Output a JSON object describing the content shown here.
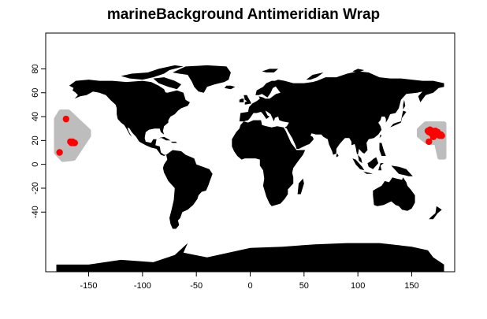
{
  "title": "marineBackground Antimeridian Wrap",
  "colors": {
    "land": "#000000",
    "background": "#bdbdbd",
    "points": "#ff0000",
    "axis": "#000000"
  },
  "chart_data": {
    "type": "scatter",
    "title": "marineBackground Antimeridian Wrap",
    "xlabel": "",
    "ylabel": "",
    "xlim": [
      -180,
      180
    ],
    "ylim": [
      -90,
      90
    ],
    "x_ticks": [
      -150,
      -100,
      -50,
      0,
      50,
      100,
      150
    ],
    "y_ticks": [
      -40,
      -20,
      0,
      20,
      40,
      60,
      80
    ],
    "grid": false,
    "series": [
      {
        "points": [
          [
            -177,
            10
          ],
          [
            -171,
            38
          ],
          [
            -167,
            19
          ],
          [
            -166,
            18
          ],
          [
            -165,
            19
          ],
          [
            -164,
            18
          ],
          [
            -163,
            18
          ],
          [
            165,
            28
          ],
          [
            166,
            27
          ],
          [
            167,
            29
          ],
          [
            168,
            26
          ],
          [
            169,
            28
          ],
          [
            170,
            27
          ],
          [
            171,
            26
          ],
          [
            172,
            28
          ],
          [
            173,
            25
          ],
          [
            174,
            27
          ],
          [
            175,
            25
          ],
          [
            176,
            24
          ],
          [
            177,
            25
          ],
          [
            178,
            24
          ],
          [
            166,
            19
          ],
          [
            170,
            23
          ]
        ]
      }
    ],
    "background_regions": [
      {
        "polygon": [
          [
            -176,
            44
          ],
          [
            -169,
            44
          ],
          [
            -150,
            28
          ],
          [
            -150,
            24
          ],
          [
            -164,
            5
          ],
          [
            -174,
            4
          ],
          [
            -180,
            10
          ],
          [
            -180,
            38
          ]
        ]
      },
      {
        "polygon": [
          [
            180,
            34
          ],
          [
            163,
            34
          ],
          [
            157,
            29
          ],
          [
            157,
            24
          ],
          [
            164,
            19
          ],
          [
            173,
            18
          ],
          [
            176,
            6
          ],
          [
            180,
            6
          ]
        ]
      }
    ]
  }
}
